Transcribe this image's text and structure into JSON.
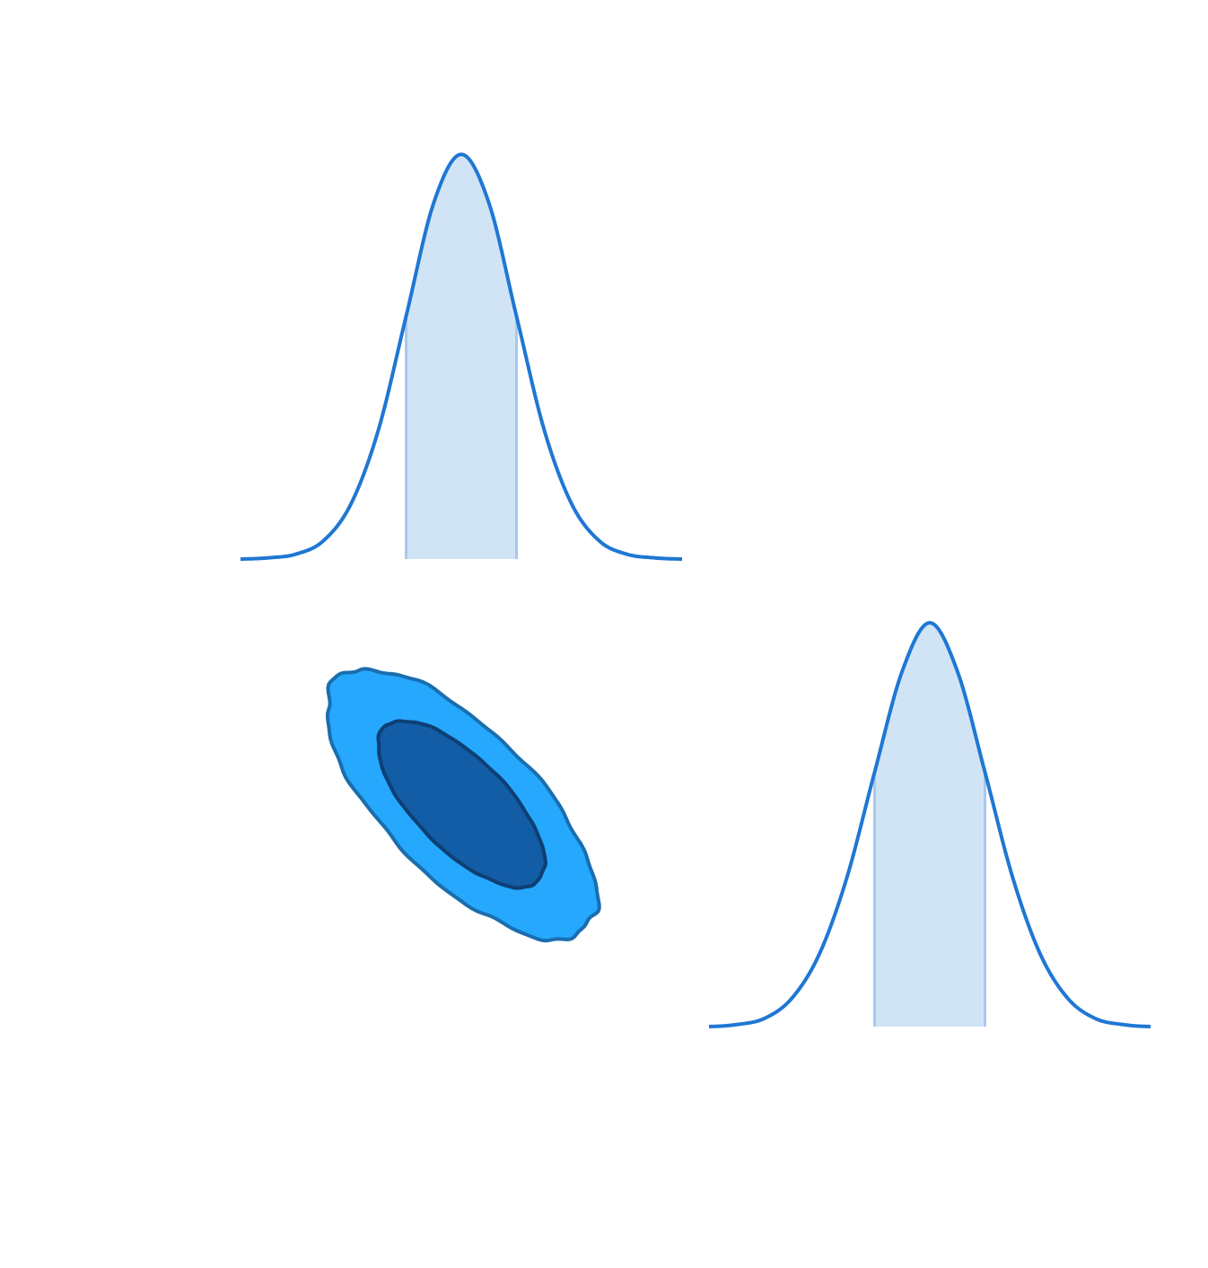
{
  "chart_data": [
    {
      "type": "area",
      "panel": "marginal-param-1",
      "x": [
        -4.0,
        -3.5,
        -3.0,
        -2.5,
        -2.0,
        -1.5,
        -1.0,
        -0.5,
        0.0,
        0.5,
        1.0,
        1.5,
        2.0,
        2.5,
        3.0,
        3.5,
        4.0
      ],
      "y": [
        0.0,
        0.003,
        0.012,
        0.045,
        0.136,
        0.32,
        0.6,
        0.88,
        1.0,
        0.88,
        0.6,
        0.32,
        0.136,
        0.045,
        0.012,
        0.003,
        0.0
      ],
      "interval": [
        -1.0,
        1.0
      ],
      "xlim": [
        -4.0,
        4.0
      ],
      "ylim": [
        0,
        1.0
      ],
      "grid": false,
      "colors": {
        "line": "#1f77d4",
        "fill": "#d1e4f6",
        "edge": "#a8c9ee"
      }
    },
    {
      "type": "contour",
      "panel": "joint-param-1-param-2",
      "levels": [
        "68%",
        "95%"
      ],
      "center": [
        0.0,
        0.0
      ],
      "correlation": -0.7,
      "xlim": [
        -4.0,
        4.0
      ],
      "ylim": [
        -4.0,
        4.0
      ],
      "grid": false,
      "colors": {
        "inner_fill": "#135ca6",
        "inner_edge": "#0d3f73",
        "outer_fill": "#25a8fd",
        "outer_edge": "#1a6eae"
      }
    },
    {
      "type": "area",
      "panel": "marginal-param-2",
      "x": [
        -4.0,
        -3.5,
        -3.0,
        -2.5,
        -2.0,
        -1.5,
        -1.0,
        -0.5,
        0.0,
        0.5,
        1.0,
        1.5,
        2.0,
        2.5,
        3.0,
        3.5,
        4.0
      ],
      "y": [
        0.0,
        0.005,
        0.02,
        0.07,
        0.18,
        0.37,
        0.63,
        0.88,
        1.0,
        0.88,
        0.63,
        0.37,
        0.18,
        0.07,
        0.02,
        0.005,
        0.0
      ],
      "interval": [
        -1.0,
        1.0
      ],
      "xlim": [
        -4.0,
        4.0
      ],
      "ylim": [
        0,
        1.0
      ],
      "grid": false,
      "colors": {
        "line": "#1f77d4",
        "fill": "#d1e4f6",
        "edge": "#a8c9ee"
      }
    }
  ]
}
